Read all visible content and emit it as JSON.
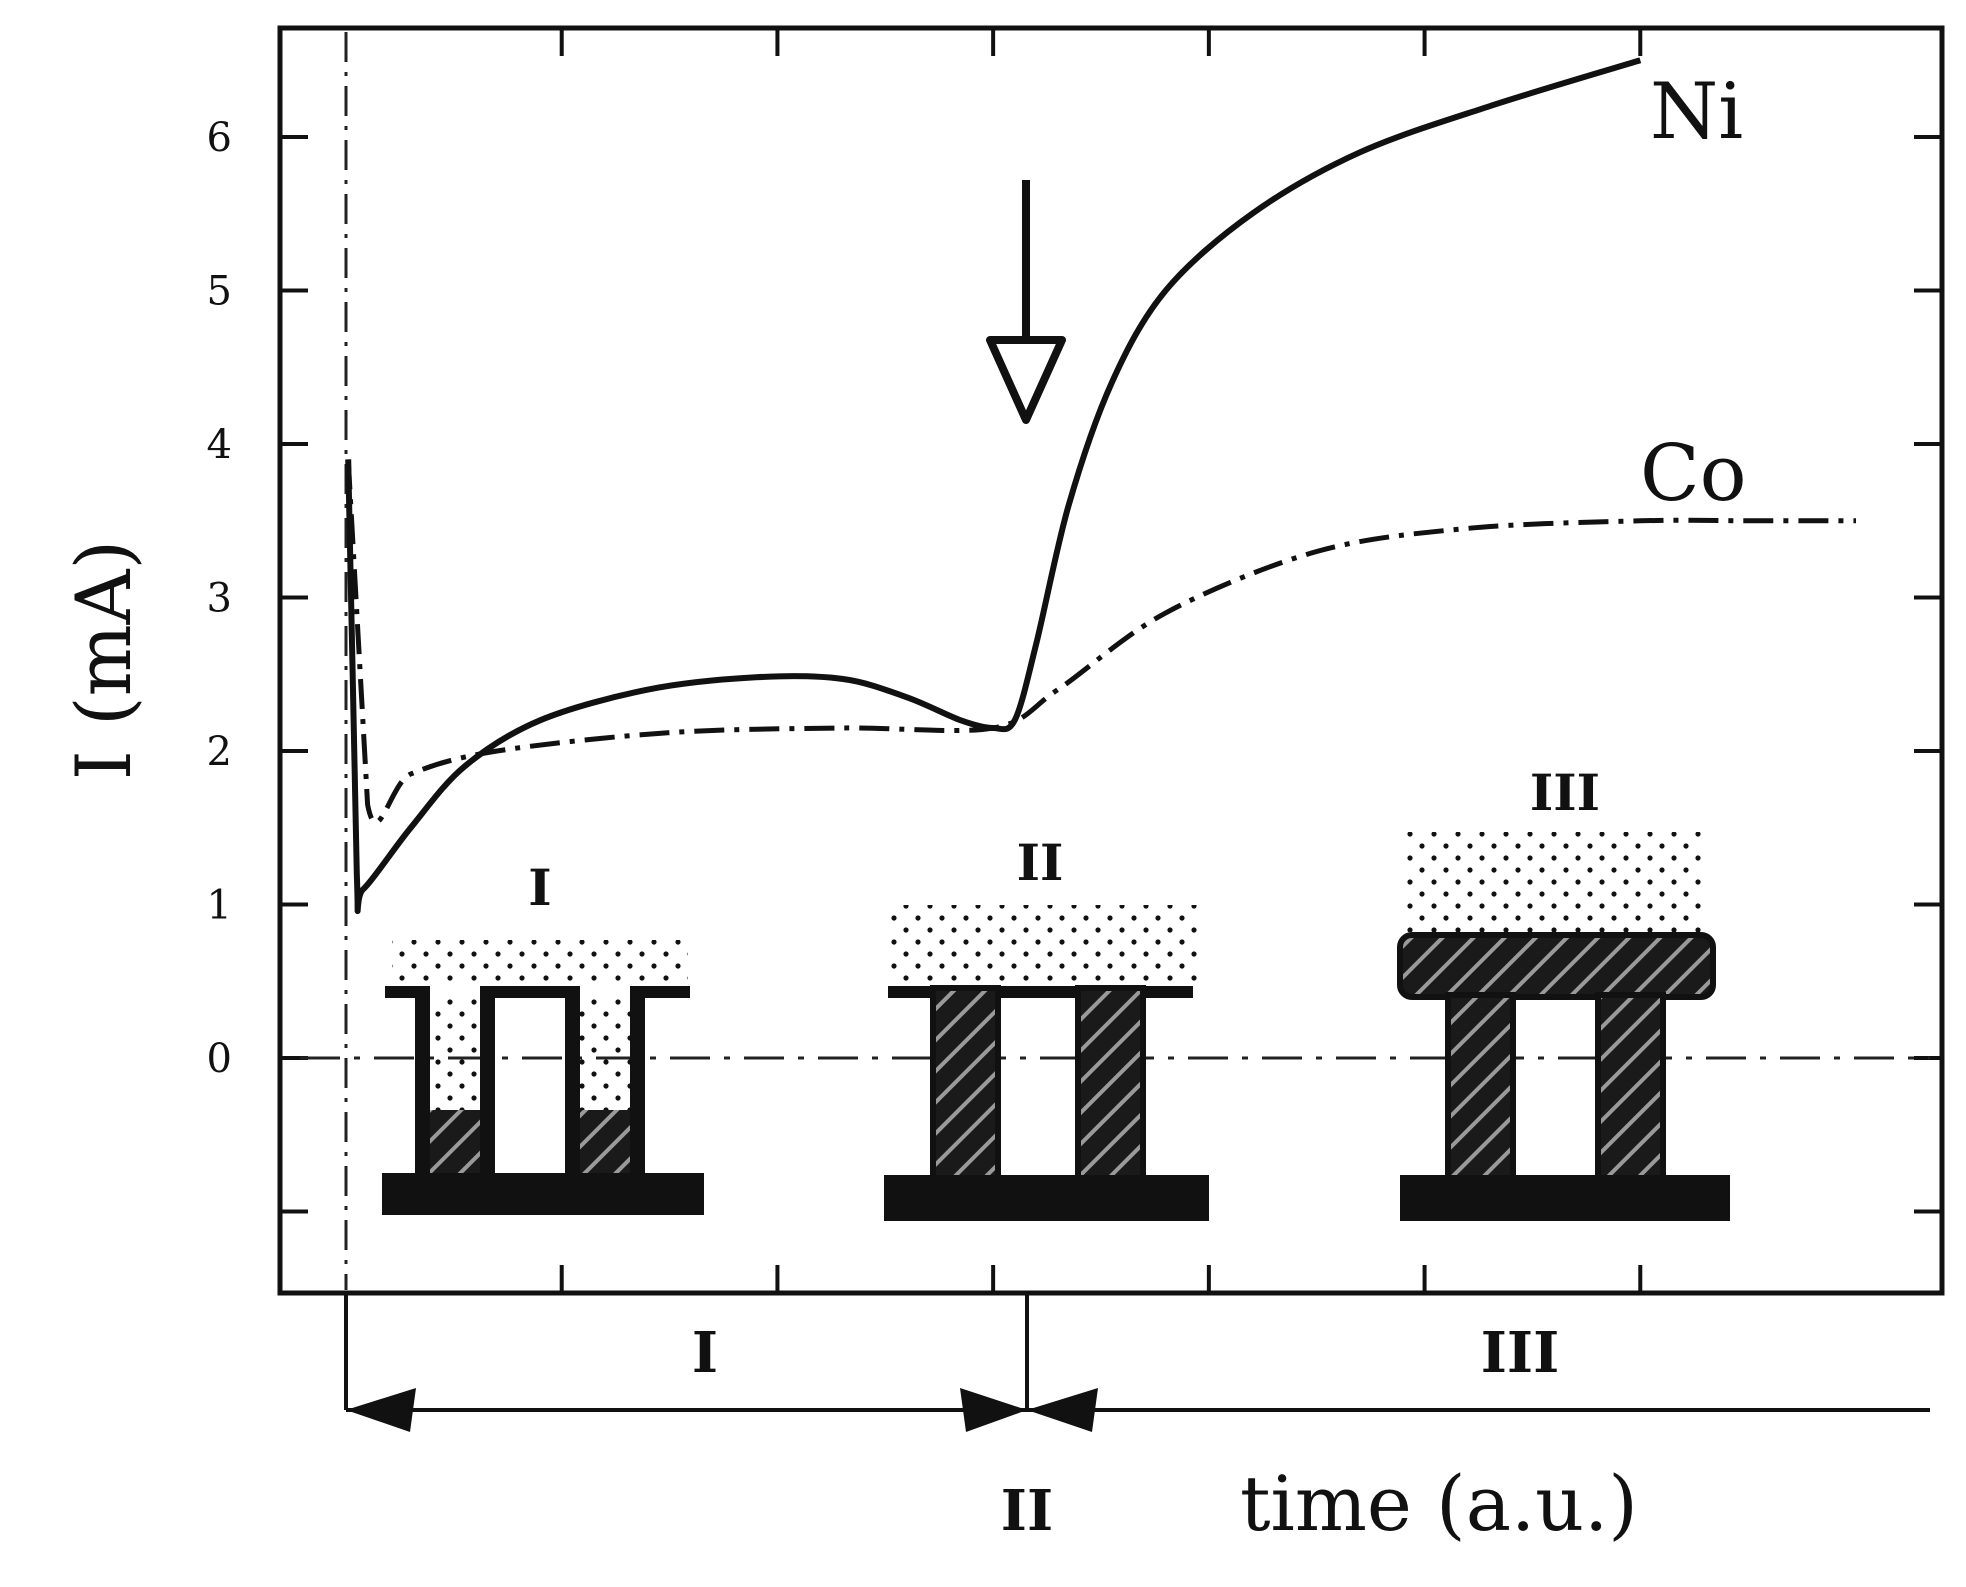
{
  "chart_data": {
    "type": "line",
    "title": "",
    "xlabel": "time (a.u.)",
    "ylabel": "I (mA)",
    "ylim": [
      -1.5,
      6.75
    ],
    "xlim": [
      0,
      7
    ],
    "yticks": [
      0,
      1,
      2,
      3,
      4,
      5,
      6
    ],
    "grid": false,
    "series": [
      {
        "name": "Ni",
        "style": "solid",
        "points": [
          [
            0.01,
            3.9
          ],
          [
            0.05,
            1.2
          ],
          [
            0.08,
            1.1
          ],
          [
            0.3,
            1.5
          ],
          [
            0.55,
            1.9
          ],
          [
            0.9,
            2.2
          ],
          [
            1.4,
            2.4
          ],
          [
            1.9,
            2.48
          ],
          [
            2.3,
            2.47
          ],
          [
            2.6,
            2.35
          ],
          [
            2.85,
            2.2
          ],
          [
            3.0,
            2.15
          ],
          [
            3.1,
            2.2
          ],
          [
            3.2,
            2.7
          ],
          [
            3.35,
            3.6
          ],
          [
            3.55,
            4.4
          ],
          [
            3.8,
            5.0
          ],
          [
            4.2,
            5.5
          ],
          [
            4.7,
            5.9
          ],
          [
            5.3,
            6.2
          ],
          [
            6.0,
            6.5
          ]
        ]
      },
      {
        "name": "Co",
        "style": "dash-dot",
        "points": [
          [
            0.01,
            3.9
          ],
          [
            0.1,
            1.65
          ],
          [
            0.3,
            1.85
          ],
          [
            0.7,
            2.0
          ],
          [
            1.5,
            2.12
          ],
          [
            2.3,
            2.15
          ],
          [
            3.0,
            2.15
          ],
          [
            3.3,
            2.4
          ],
          [
            3.8,
            2.9
          ],
          [
            4.5,
            3.3
          ],
          [
            5.2,
            3.45
          ],
          [
            6.0,
            3.5
          ],
          [
            6.5,
            3.5
          ],
          [
            7.0,
            3.5
          ]
        ]
      }
    ],
    "annotations": {
      "arrow_at_x": 3.0,
      "stage_labels": [
        "I",
        "II",
        "III"
      ],
      "phases": [
        {
          "label": "I",
          "from": 0,
          "to": 3.0
        },
        {
          "label": "II",
          "at": 3.0
        },
        {
          "label": "III",
          "from": 3.0,
          "to": 7.0
        }
      ]
    }
  }
}
